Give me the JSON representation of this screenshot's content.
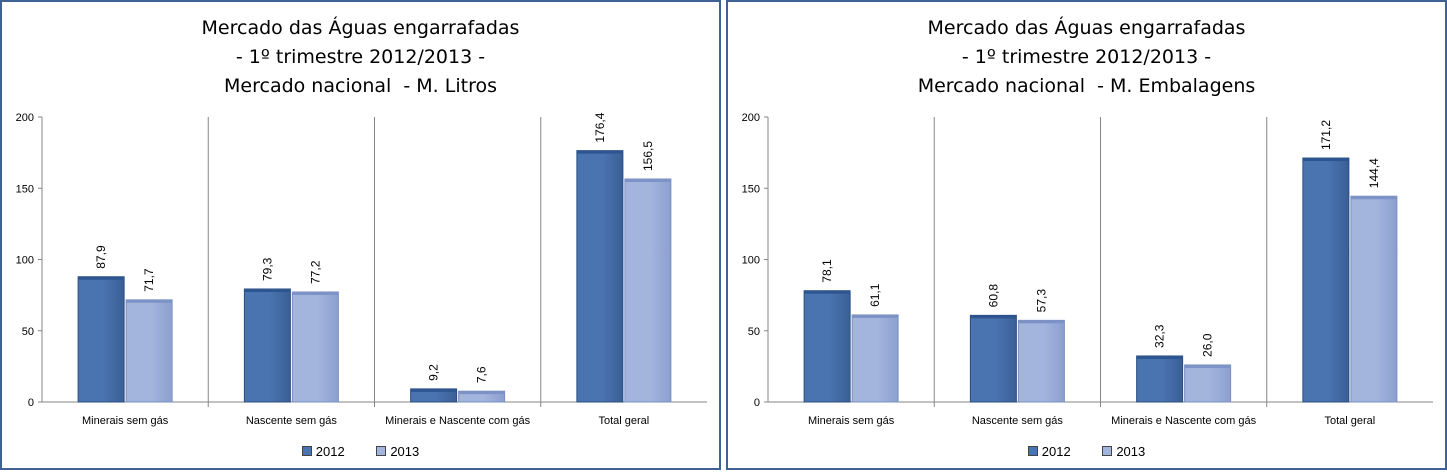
{
  "chart_data": [
    {
      "type": "bar",
      "title": [
        "Mercado das Águas engarrafadas",
        "- 1º trimestre 2012/2013 -",
        "Mercado nacional  - M. Litros"
      ],
      "categories": [
        "Minerais sem gás",
        "Nascente sem gás",
        "Minerais e Nascente com gás",
        "Total geral"
      ],
      "series": [
        {
          "name": "2012",
          "values": [
            87.9,
            79.3,
            9.2,
            176.4
          ],
          "labels": [
            "87,9",
            "79,3",
            "9,2",
            "176,4"
          ]
        },
        {
          "name": "2013",
          "values": [
            71.7,
            77.2,
            7.6,
            156.5
          ],
          "labels": [
            "71,7",
            "77,2",
            "7,6",
            "156,5"
          ]
        }
      ],
      "ylim": [
        0,
        200
      ],
      "yticks": [
        "0",
        "50",
        "100",
        "150",
        "200"
      ],
      "grid": false,
      "legend": "bottom"
    },
    {
      "type": "bar",
      "title": [
        "Mercado das Águas engarrafadas",
        "- 1º trimestre 2012/2013 -",
        "Mercado nacional  - M. Embalagens"
      ],
      "categories": [
        "Minerais sem gás",
        "Nascente sem gás",
        "Minerais e Nascente com gás",
        "Total geral"
      ],
      "series": [
        {
          "name": "2012",
          "values": [
            78.1,
            60.8,
            32.3,
            171.2
          ],
          "labels": [
            "78,1",
            "60,8",
            "32,3",
            "171,2"
          ]
        },
        {
          "name": "2013",
          "values": [
            61.1,
            57.3,
            26.0,
            144.4
          ],
          "labels": [
            "61,1",
            "57,3",
            "26,0",
            "144,4"
          ]
        }
      ],
      "ylim": [
        0,
        200
      ],
      "yticks": [
        "0",
        "50",
        "100",
        "150",
        "200"
      ],
      "grid": false,
      "legend": "bottom"
    }
  ],
  "colors": {
    "series_2012": "#4a74b0",
    "series_2013": "#a3b4dd",
    "frame": "#3f6193"
  }
}
